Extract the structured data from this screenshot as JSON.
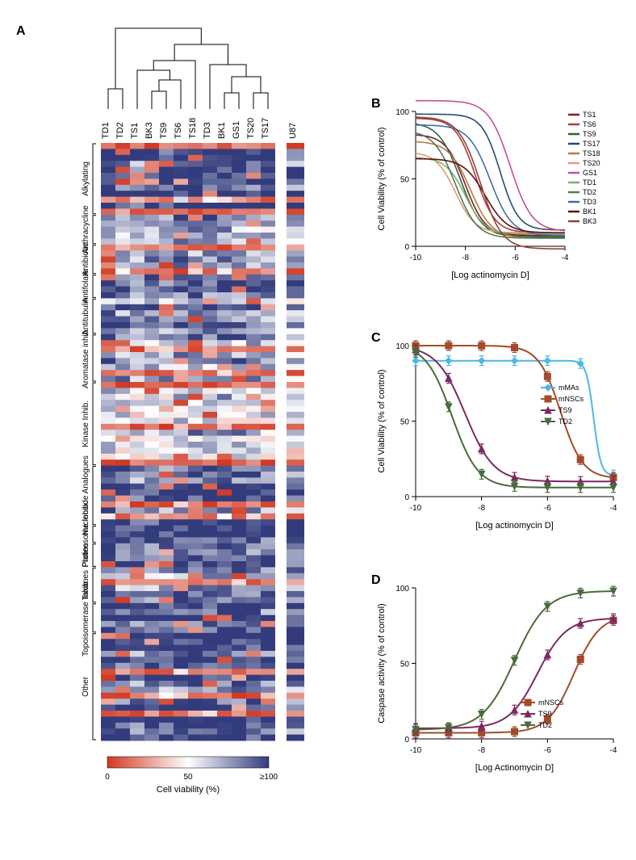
{
  "palette": {
    "red": "#d13923",
    "white": "#ffffff",
    "blue": "#323c7c"
  },
  "heatmap": {
    "type": "heatmap",
    "columns": [
      "TD1",
      "TD2",
      "TS1",
      "BK3",
      "TS9",
      "TS6",
      "TS18",
      "TD3",
      "BK1",
      "GS1",
      "TS20",
      "TS17"
    ],
    "extra_column": "U87",
    "row_groups": [
      {
        "label": "Alkylating",
        "n": 12
      },
      {
        "label": "Anthracycline",
        "n": 5
      },
      {
        "label": "Antibiotic",
        "n": 5
      },
      {
        "label": "Antifolate",
        "n": 4
      },
      {
        "label": "Antitubulin",
        "n": 6
      },
      {
        "label": "Aromatase inhib.",
        "n": 8
      },
      {
        "label": "Kinase Inhib.",
        "n": 14
      },
      {
        "label": "Nucleoside Analogues",
        "n": 10
      },
      {
        "label": "Proteosome Inhib.",
        "n": 3
      },
      {
        "label": "Platins",
        "n": 4
      },
      {
        "label": "Taxanes",
        "n": 6
      },
      {
        "label": "Topoisomerase Inhib.",
        "n": 5
      },
      {
        "label": "Other",
        "n": 18
      }
    ],
    "seed": 12345,
    "legend": {
      "title": "Cell viability (%)",
      "ticks": [
        0,
        50,
        "≥100"
      ]
    },
    "dendrogram": {
      "leaves": [
        "TD1",
        "TD2",
        "TS1",
        "BK3",
        "TS9",
        "TS6",
        "TS18",
        "TD3",
        "BK1",
        "GS1",
        "TS20",
        "TS17"
      ],
      "merges": [
        {
          "children": [
            "TD1",
            "TD2"
          ],
          "h": 0.25,
          "name": "m1"
        },
        {
          "children": [
            "BK3",
            "TS9"
          ],
          "h": 0.22,
          "name": "m2"
        },
        {
          "children": [
            "m2",
            "TS6"
          ],
          "h": 0.36,
          "name": "m3"
        },
        {
          "children": [
            "TS1",
            "m3"
          ],
          "h": 0.48,
          "name": "m4"
        },
        {
          "children": [
            "m4",
            "TS18"
          ],
          "h": 0.6,
          "name": "m5"
        },
        {
          "children": [
            "BK1",
            "GS1"
          ],
          "h": 0.2,
          "name": "m6"
        },
        {
          "children": [
            "TS20",
            "TS17"
          ],
          "h": 0.2,
          "name": "m7"
        },
        {
          "children": [
            "m6",
            "m7"
          ],
          "h": 0.4,
          "name": "m8"
        },
        {
          "children": [
            "TD3",
            "m8"
          ],
          "h": 0.55,
          "name": "m9"
        },
        {
          "children": [
            "m5",
            "m9"
          ],
          "h": 0.8,
          "name": "m10"
        },
        {
          "children": [
            "m1",
            "m10"
          ],
          "h": 1.0,
          "name": "root"
        }
      ]
    }
  },
  "chartB": {
    "type": "line",
    "title": "",
    "xlabel": "[Log actinomycin D]",
    "ylabel": "Cell Viability (% of control)",
    "xlim": [
      -10,
      -4
    ],
    "xtick": [
      -10,
      -8,
      -6,
      -4
    ],
    "ylim": [
      0,
      100
    ],
    "ytick": [
      0,
      50,
      100
    ],
    "series": [
      {
        "name": "TS1",
        "color": "#7a1f24",
        "top": 83,
        "bottom": 8,
        "logEC50": -8.0,
        "hill": 1.1
      },
      {
        "name": "TS6",
        "color": "#ae3a44",
        "top": 95,
        "bottom": 10,
        "logEC50": -7.6,
        "hill": 1.1
      },
      {
        "name": "TS9",
        "color": "#2e6140",
        "top": 92,
        "bottom": 7,
        "logEC50": -8.2,
        "hill": 1.0
      },
      {
        "name": "TS17",
        "color": "#2a4a6e",
        "top": 98,
        "bottom": 12,
        "logEC50": -6.6,
        "hill": 1.2
      },
      {
        "name": "TS18",
        "color": "#bb7844",
        "top": 78,
        "bottom": 6,
        "logEC50": -7.8,
        "hill": 1.0
      },
      {
        "name": "TS20",
        "color": "#e69a78",
        "top": 70,
        "bottom": 10,
        "logEC50": -8.4,
        "hill": 1.1
      },
      {
        "name": "GS1",
        "color": "#c64f95",
        "top": 108,
        "bottom": 11,
        "logEC50": -6.2,
        "hill": 1.0
      },
      {
        "name": "TD1",
        "color": "#7fae6a",
        "top": 66,
        "bottom": 9,
        "logEC50": -8.0,
        "hill": 1.1
      },
      {
        "name": "TD2",
        "color": "#4c7c56",
        "top": 86,
        "bottom": 6,
        "logEC50": -8.4,
        "hill": 1.0
      },
      {
        "name": "TD3",
        "color": "#416fa6",
        "top": 90,
        "bottom": 8,
        "logEC50": -7.0,
        "hill": 1.0
      },
      {
        "name": "BK1",
        "color": "#5d1212",
        "top": 65,
        "bottom": 10,
        "logEC50": -7.2,
        "hill": 1.0
      },
      {
        "name": "BK3",
        "color": "#924431",
        "top": 96,
        "bottom": -2,
        "logEC50": -7.4,
        "hill": 1.0
      }
    ]
  },
  "chartC": {
    "type": "line",
    "xlabel": "[Log actinomycin D]",
    "ylabel": "Cell Viability (% of control)",
    "xlim": [
      -10,
      -4
    ],
    "xtick": [
      -10,
      -8,
      -6,
      -4
    ],
    "ylim": [
      0,
      100
    ],
    "ytick": [
      0,
      50,
      100
    ],
    "series": [
      {
        "name": "mMAs",
        "color": "#4fb7e6",
        "marker": "diamond",
        "top": 90,
        "bottom": 14,
        "logEC50": -4.6,
        "hill": 4.0
      },
      {
        "name": "mNSCs",
        "color": "#a24b2a",
        "marker": "square",
        "top": 100,
        "bottom": 12,
        "logEC50": -5.6,
        "hill": 1.3
      },
      {
        "name": "TS9",
        "color": "#7b2a5f",
        "marker": "triUp",
        "top": 100,
        "bottom": 10,
        "logEC50": -8.5,
        "hill": 1.0
      },
      {
        "name": "TD2",
        "color": "#486b3b",
        "marker": "triDown",
        "top": 101,
        "bottom": 6,
        "logEC50": -8.9,
        "hill": 1.1
      }
    ]
  },
  "chartD": {
    "type": "line",
    "xlabel": "[Log Actinomycin D]",
    "ylabel": "Caspase activity (% of control)",
    "xlim": [
      -10,
      -4
    ],
    "xtick": [
      -10,
      -8,
      -6,
      -4
    ],
    "ylim": [
      0,
      100
    ],
    "ytick": [
      0,
      50,
      100
    ],
    "series": [
      {
        "name": "mNSCs",
        "color": "#a24b2a",
        "marker": "square",
        "top": 82,
        "bottom": 4,
        "logEC50": -5.2,
        "hill": 1.1
      },
      {
        "name": "TS9",
        "color": "#7b2a5f",
        "marker": "triUp",
        "top": 80,
        "bottom": 7,
        "logEC50": -6.3,
        "hill": 1.0
      },
      {
        "name": "TD2",
        "color": "#486b3b",
        "marker": "triDown",
        "top": 98,
        "bottom": 6,
        "logEC50": -7.0,
        "hill": 0.9
      }
    ]
  }
}
